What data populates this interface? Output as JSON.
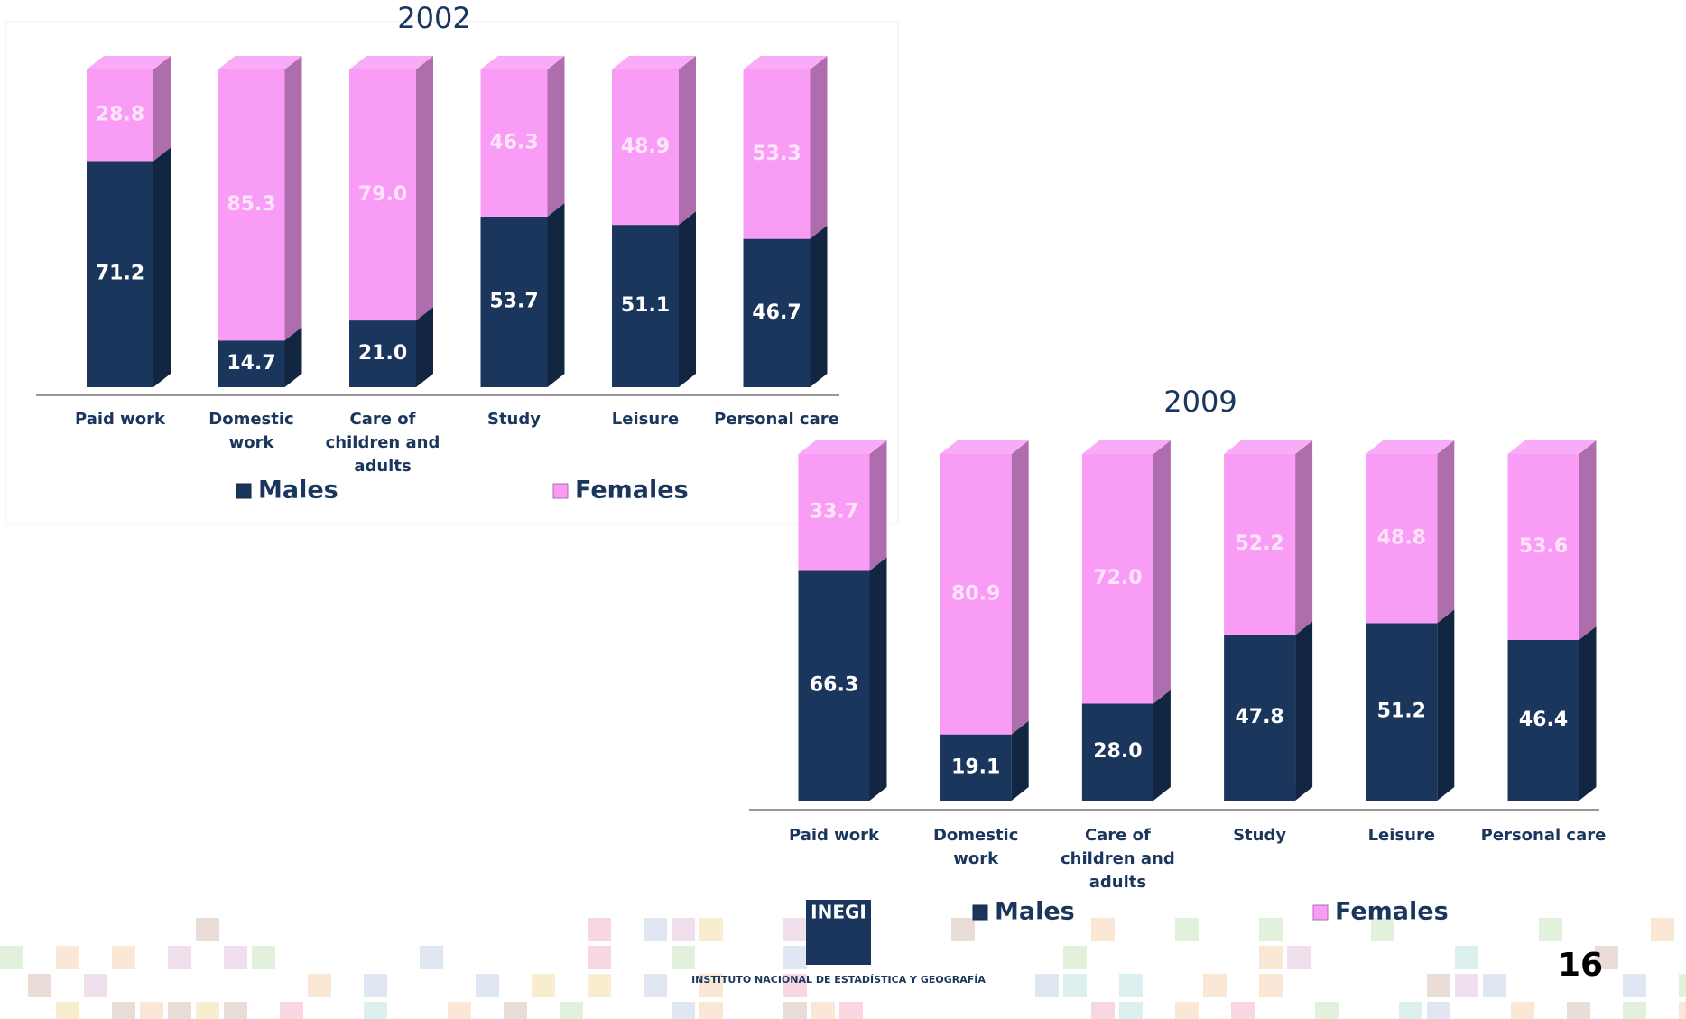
{
  "chart_data": [
    {
      "type": "bar",
      "stacked": true,
      "title": "2002",
      "categories": [
        "Paid work",
        "Domestic work",
        "Care of children and adults",
        "Study",
        "Leisure",
        "Personal care"
      ],
      "series": [
        {
          "name": "Males",
          "color": "#1b365d",
          "values": [
            71.2,
            14.7,
            21.0,
            53.7,
            51.1,
            46.7
          ],
          "value_labels": [
            "71.2",
            "14.7",
            "21.0",
            "53.7",
            "51.1",
            "46.7"
          ]
        },
        {
          "name": "Females",
          "color": "#f99cf5",
          "values": [
            28.8,
            85.3,
            79.0,
            46.3,
            48.9,
            53.3
          ],
          "value_labels": [
            "28.8",
            "85.3",
            "79.0",
            "46.3",
            "48.9",
            "53.3"
          ]
        }
      ]
    },
    {
      "type": "bar",
      "stacked": true,
      "title": "2009",
      "categories": [
        "Paid work",
        "Domestic work",
        "Care of children and adults",
        "Study",
        "Leisure",
        "Personal care"
      ],
      "series": [
        {
          "name": "Males",
          "color": "#1b365d",
          "values": [
            66.3,
            19.1,
            28.0,
            47.8,
            51.2,
            46.4
          ],
          "value_labels": [
            "66.3",
            "19.1",
            "28.0",
            "47.8",
            "51.2",
            "46.4"
          ]
        },
        {
          "name": "Females",
          "color": "#f99cf5",
          "values": [
            33.7,
            80.9,
            72.0,
            52.2,
            48.8,
            53.6
          ],
          "value_labels": [
            "33.7",
            "80.9",
            "72.0",
            "52.2",
            "48.8",
            "53.6"
          ]
        }
      ]
    }
  ],
  "logo": {
    "acronym": "INEGI",
    "name": "INSTITUTO NACIONAL DE ESTADÍSTICA Y GEOGRAFÍA"
  },
  "page_number": "16"
}
